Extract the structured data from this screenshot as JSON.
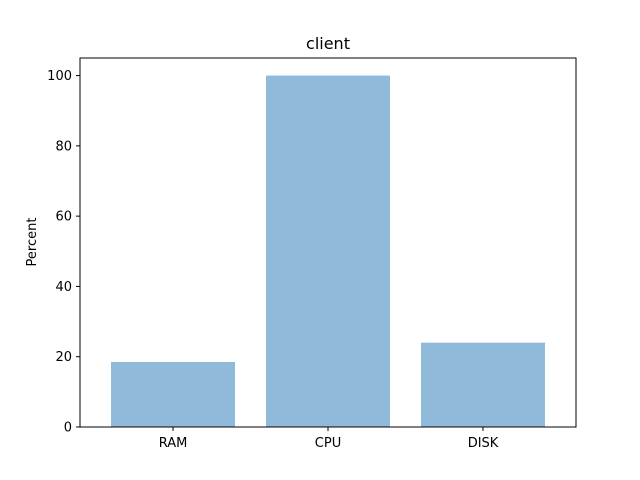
{
  "chart_data": {
    "type": "bar",
    "title": "client",
    "xlabel": "",
    "ylabel": "Percent",
    "categories": [
      "RAM",
      "CPU",
      "DISK"
    ],
    "values": [
      18.5,
      100,
      24
    ],
    "ylim": [
      0,
      105
    ],
    "yticks": [
      0,
      20,
      40,
      60,
      80,
      100
    ],
    "grid": false,
    "bar_color": "#8fbad9"
  }
}
